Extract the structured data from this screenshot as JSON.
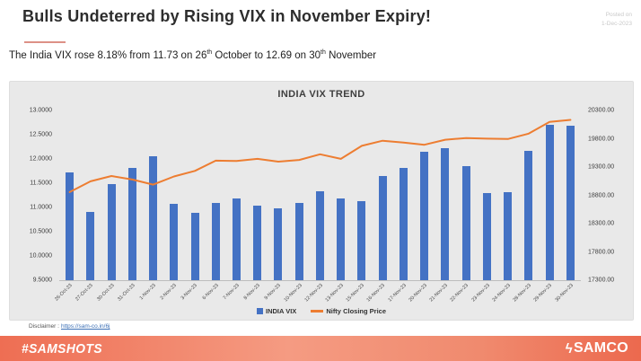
{
  "header": {
    "title": "Bulls Undeterred by Rising VIX in November Expiry!",
    "posted_on_line1": "Posted on",
    "posted_on_line2": "1-Dec-2023",
    "subtitle": {
      "part1": "The India VIX rose 8.18% from 11.73 on 26",
      "sup1": "th",
      "part2": " October to 12.69 on 30",
      "sup2": "th",
      "part3": " November"
    }
  },
  "chart_data": {
    "type": "bar",
    "title": "INDIA VIX TREND",
    "grid": false,
    "legend_position": "bottom",
    "categories": [
      "26-Oct-23",
      "27-Oct-23",
      "30-Oct-23",
      "31-Oct-23",
      "1-Nov-23",
      "2-Nov-23",
      "3-Nov-23",
      "6-Nov-23",
      "7-Nov-23",
      "8-Nov-23",
      "9-Nov-23",
      "10-Nov-23",
      "12-Nov-23",
      "13-Nov-23",
      "15-Nov-23",
      "16-Nov-23",
      "17-Nov-23",
      "20-Nov-23",
      "21-Nov-23",
      "22-Nov-23",
      "23-Nov-23",
      "24-Nov-23",
      "28-Nov-23",
      "29-Nov-23",
      "30-Nov-23"
    ],
    "series": [
      {
        "name": "INDIA VIX",
        "type": "bar",
        "axis": "left",
        "color": "#4472C4",
        "values": [
          11.73,
          10.91,
          11.48,
          11.82,
          12.05,
          11.07,
          10.88,
          11.1,
          11.19,
          11.04,
          10.98,
          11.1,
          11.34,
          11.19,
          11.13,
          11.64,
          11.82,
          12.14,
          12.23,
          11.86,
          11.3,
          11.31,
          12.17,
          12.7,
          12.69
        ]
      },
      {
        "name": "Nifty Closing Price",
        "type": "line",
        "axis": "right",
        "color": "#ED7D31",
        "values": [
          18857,
          19047,
          19141,
          19080,
          18989,
          19133,
          19231,
          19412,
          19407,
          19444,
          19395,
          19425,
          19526,
          19444,
          19675,
          19765,
          19732,
          19694,
          19783,
          19812,
          19802,
          19795,
          19890,
          20097,
          20133
        ]
      }
    ],
    "left_axis": {
      "min": 9.5,
      "max": 13.0,
      "ticks": [
        "13.0000",
        "12.5000",
        "12.0000",
        "11.5000",
        "11.0000",
        "10.5000",
        "10.0000",
        "9.5000"
      ]
    },
    "right_axis": {
      "min": 17300,
      "max": 20300,
      "ticks": [
        "20300.00",
        "19800.00",
        "19300.00",
        "18800.00",
        "18300.00",
        "17800.00",
        "17300.00"
      ]
    }
  },
  "disclaimer": {
    "label": "Disclaimer :",
    "link": "https://sam-co.in/6j"
  },
  "footer": {
    "hashtag": "#SAMSHOTS",
    "brand": "SAMCO",
    "logo_mark": "ϟ"
  },
  "colors": {
    "bar": "#4472C4",
    "line": "#ED7D31",
    "panel_bg": "#E9E9E9",
    "footer_left": "#ee6e53",
    "footer_mid": "#f59b82",
    "footer_right": "#ec694e",
    "title_text": "#2d2d2d",
    "accent_underline": "#dd9186"
  }
}
